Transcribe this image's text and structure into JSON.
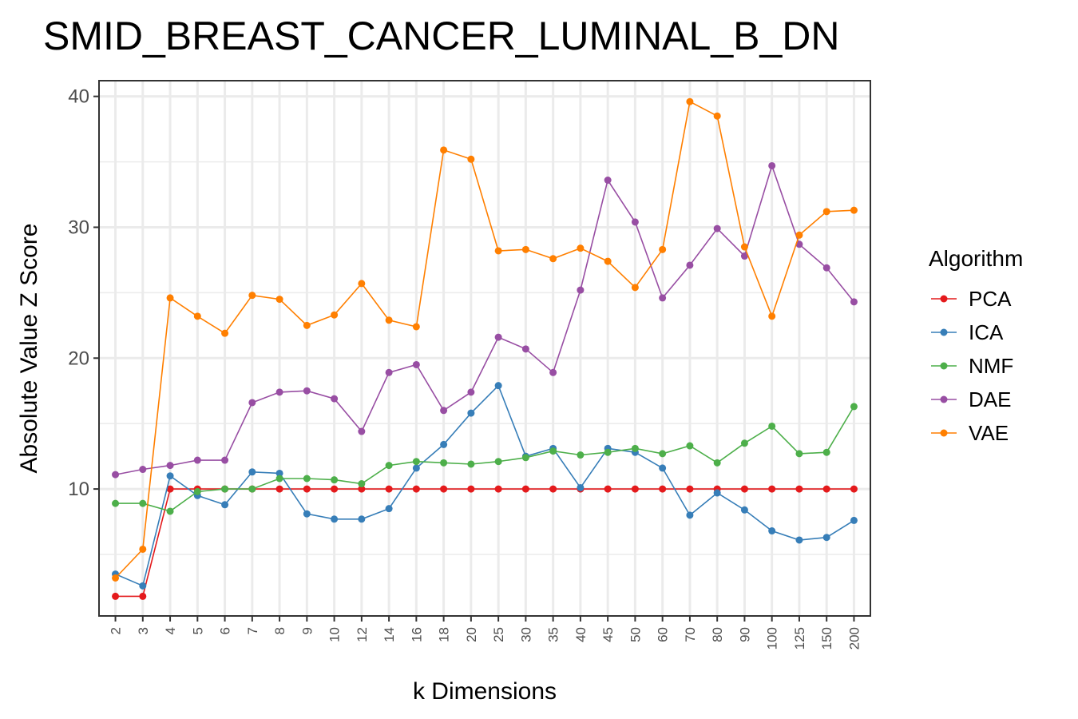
{
  "chart_data": {
    "type": "line",
    "title": "SMID_BREAST_CANCER_LUMINAL_B_DN",
    "xlabel": "k Dimensions",
    "ylabel": "Absolute Value Z Score",
    "categories": [
      "2",
      "3",
      "4",
      "5",
      "6",
      "7",
      "8",
      "9",
      "10",
      "12",
      "14",
      "16",
      "18",
      "20",
      "25",
      "30",
      "35",
      "40",
      "45",
      "50",
      "60",
      "70",
      "80",
      "90",
      "100",
      "125",
      "150",
      "200"
    ],
    "ylim": [
      0.3,
      41.2
    ],
    "yticks": [
      10,
      20,
      30,
      40
    ],
    "grid": true,
    "legend_title": "Algorithm",
    "legend_position": "right",
    "series": [
      {
        "name": "PCA",
        "color": "#E41A1C",
        "values": [
          1.8,
          1.8,
          10.0,
          10.0,
          10.0,
          10.0,
          10.0,
          10.0,
          10.0,
          10.0,
          10.0,
          10.0,
          10.0,
          10.0,
          10.0,
          10.0,
          10.0,
          10.0,
          10.0,
          10.0,
          10.0,
          10.0,
          10.0,
          10.0,
          10.0,
          10.0,
          10.0,
          10.0
        ]
      },
      {
        "name": "ICA",
        "color": "#377EB8",
        "values": [
          3.5,
          2.6,
          11.0,
          9.5,
          8.8,
          11.3,
          11.2,
          8.1,
          7.7,
          7.7,
          8.5,
          11.6,
          13.4,
          15.8,
          17.9,
          12.5,
          13.1,
          10.1,
          13.1,
          12.8,
          11.6,
          8.0,
          9.7,
          8.4,
          6.8,
          6.1,
          6.3,
          7.6
        ]
      },
      {
        "name": "NMF",
        "color": "#4DAF4A",
        "values": [
          8.9,
          8.9,
          8.3,
          9.8,
          10.0,
          10.0,
          10.8,
          10.8,
          10.7,
          10.4,
          11.8,
          12.1,
          12.0,
          11.9,
          12.1,
          12.4,
          12.9,
          12.6,
          12.8,
          13.1,
          12.7,
          13.3,
          12.0,
          13.5,
          14.8,
          12.7,
          12.8,
          16.3
        ]
      },
      {
        "name": "DAE",
        "color": "#984EA3",
        "values": [
          11.1,
          11.5,
          11.8,
          12.2,
          12.2,
          16.6,
          17.4,
          17.5,
          16.9,
          14.4,
          18.9,
          19.5,
          16.0,
          17.4,
          21.6,
          20.7,
          18.9,
          25.2,
          33.6,
          30.4,
          24.6,
          27.1,
          29.9,
          27.8,
          34.7,
          28.7,
          26.9,
          24.3
        ]
      },
      {
        "name": "VAE",
        "color": "#FF7F00",
        "values": [
          3.2,
          5.4,
          24.6,
          23.2,
          21.9,
          24.8,
          24.5,
          22.5,
          23.3,
          25.7,
          22.9,
          22.4,
          35.9,
          35.2,
          28.2,
          28.3,
          27.6,
          28.4,
          27.4,
          25.4,
          28.3,
          39.6,
          38.5,
          28.5,
          23.2,
          29.4,
          31.2,
          31.3
        ]
      }
    ]
  }
}
